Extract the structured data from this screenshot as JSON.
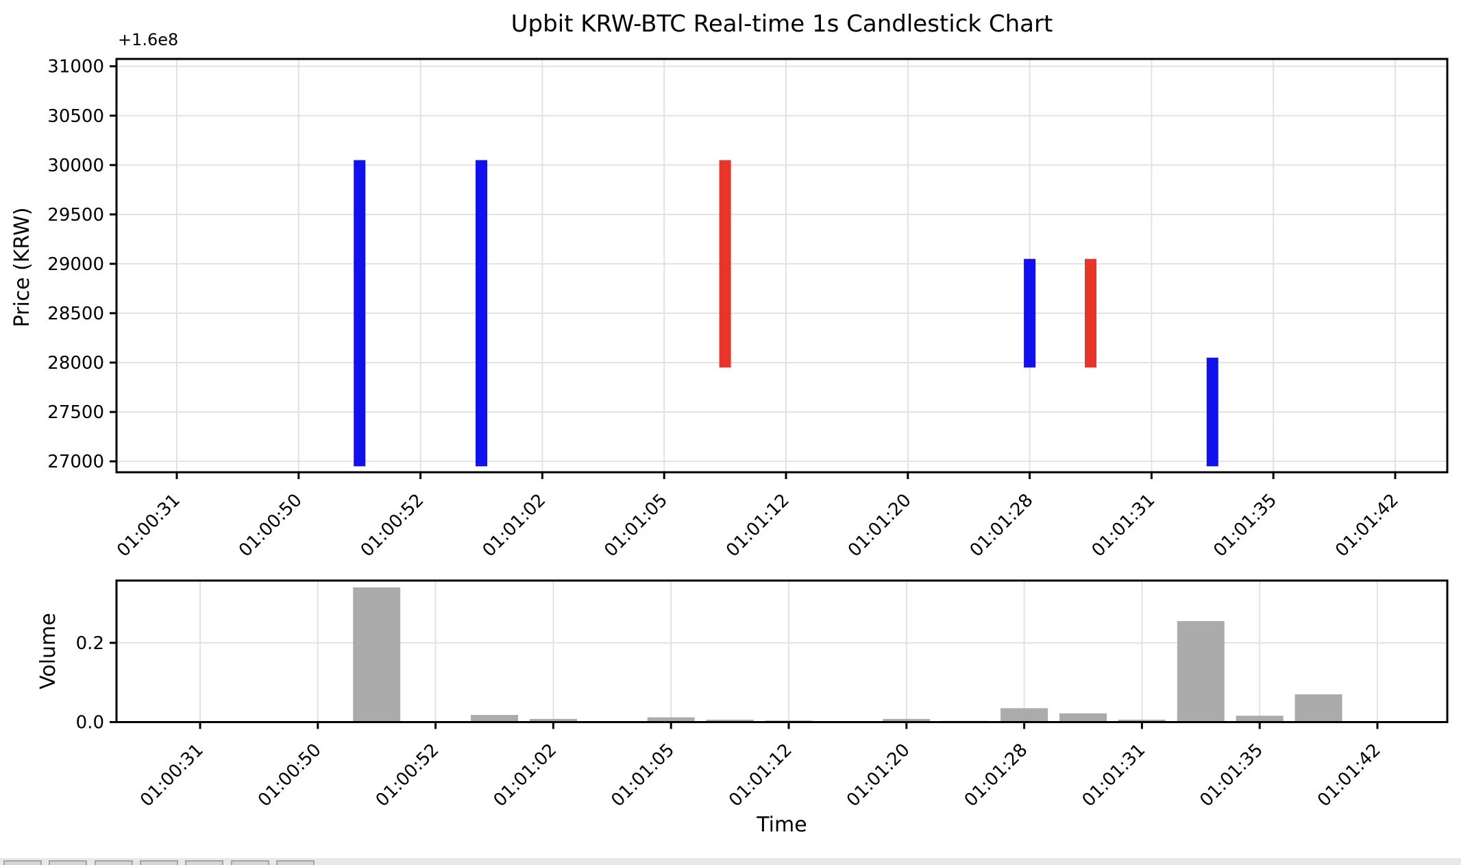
{
  "figure_title": "Upbit KRW-BTC Real-time 1s Candlestick Chart",
  "price_axis": {
    "offset_label": "+1.6e8",
    "ylabel": "Price (KRW)",
    "tick_labels": [
      "27000",
      "27500",
      "28000",
      "28500",
      "29000",
      "29500",
      "30000",
      "30500",
      "31000"
    ]
  },
  "volume_axis": {
    "ylabel": "Volume",
    "tick_labels": [
      "0.0",
      "0.2"
    ]
  },
  "time_axis": {
    "xlabel": "Time",
    "tick_labels": [
      "01:00:31",
      "01:00:50",
      "01:00:52",
      "01:01:02",
      "01:01:05",
      "01:01:12",
      "01:01:20",
      "01:01:28",
      "01:01:31",
      "01:01:35",
      "01:01:42"
    ]
  },
  "colors": {
    "candle_up": "#e9342a",
    "candle_down": "#1111ef",
    "volume_bar": "#ababab",
    "grid": "#e2e2e2",
    "spine": "#000000",
    "background": "#ffffff",
    "toolbar_bg": "#e8e8e8",
    "toolbar_button": "#d5d5d5"
  },
  "toolbar": {
    "buttons": [
      "",
      "",
      "",
      "",
      "",
      "",
      ""
    ]
  },
  "chart_data": [
    {
      "type": "candlestick",
      "title": "Upbit KRW-BTC Real-time 1s Candlestick Chart",
      "ylabel": "Price (KRW)",
      "y_axis_offset": "+1.6e8",
      "grid": true,
      "slots_total": 21,
      "x_ticks": [
        {
          "slot": 0,
          "label": "01:00:31"
        },
        {
          "slot": 2,
          "label": "01:00:50"
        },
        {
          "slot": 4,
          "label": "01:00:52"
        },
        {
          "slot": 6,
          "label": "01:01:02"
        },
        {
          "slot": 8,
          "label": "01:01:05"
        },
        {
          "slot": 10,
          "label": "01:01:12"
        },
        {
          "slot": 12,
          "label": "01:01:20"
        },
        {
          "slot": 14,
          "label": "01:01:28"
        },
        {
          "slot": 16,
          "label": "01:01:31"
        },
        {
          "slot": 18,
          "label": "01:01:35"
        },
        {
          "slot": 20,
          "label": "01:01:42"
        }
      ],
      "y_ticks": [
        27000,
        27500,
        28000,
        28500,
        29000,
        29500,
        30000,
        30500,
        31000
      ],
      "ylim": [
        26860,
        31075
      ],
      "candles": [
        {
          "slot": 3,
          "direction": "down",
          "body_low": 26950,
          "body_high": 30050
        },
        {
          "slot": 5,
          "direction": "down",
          "body_low": 26950,
          "body_high": 30050
        },
        {
          "slot": 9,
          "direction": "up",
          "body_low": 27950,
          "body_high": 30050
        },
        {
          "slot": 14,
          "direction": "down",
          "body_low": 27950,
          "body_high": 29050
        },
        {
          "slot": 15,
          "direction": "up",
          "body_low": 27950,
          "body_high": 29050
        },
        {
          "slot": 17,
          "direction": "down",
          "body_low": 26950,
          "body_high": 28050
        }
      ]
    },
    {
      "type": "bar",
      "ylabel": "Volume",
      "xlabel": "Time",
      "grid": true,
      "slots_total": 21,
      "x_ticks": [
        {
          "slot": 0,
          "label": "01:00:31"
        },
        {
          "slot": 2,
          "label": "01:00:50"
        },
        {
          "slot": 4,
          "label": "01:00:52"
        },
        {
          "slot": 6,
          "label": "01:01:02"
        },
        {
          "slot": 8,
          "label": "01:01:05"
        },
        {
          "slot": 10,
          "label": "01:01:12"
        },
        {
          "slot": 12,
          "label": "01:01:20"
        },
        {
          "slot": 14,
          "label": "01:01:28"
        },
        {
          "slot": 16,
          "label": "01:01:31"
        },
        {
          "slot": 18,
          "label": "01:01:35"
        },
        {
          "slot": 20,
          "label": "01:01:42"
        }
      ],
      "y_ticks": [
        0.0,
        0.2
      ],
      "ylim": [
        0,
        0.357
      ],
      "bars": [
        {
          "slot": 1,
          "value": 0.002
        },
        {
          "slot": 3,
          "value": 0.34
        },
        {
          "slot": 5,
          "value": 0.018
        },
        {
          "slot": 6,
          "value": 0.008
        },
        {
          "slot": 8,
          "value": 0.012
        },
        {
          "slot": 9,
          "value": 0.006
        },
        {
          "slot": 10,
          "value": 0.004
        },
        {
          "slot": 12,
          "value": 0.008
        },
        {
          "slot": 13,
          "value": 0.003
        },
        {
          "slot": 14,
          "value": 0.035
        },
        {
          "slot": 15,
          "value": 0.022
        },
        {
          "slot": 16,
          "value": 0.006
        },
        {
          "slot": 17,
          "value": 0.255
        },
        {
          "slot": 18,
          "value": 0.016
        },
        {
          "slot": 19,
          "value": 0.07
        }
      ]
    }
  ]
}
